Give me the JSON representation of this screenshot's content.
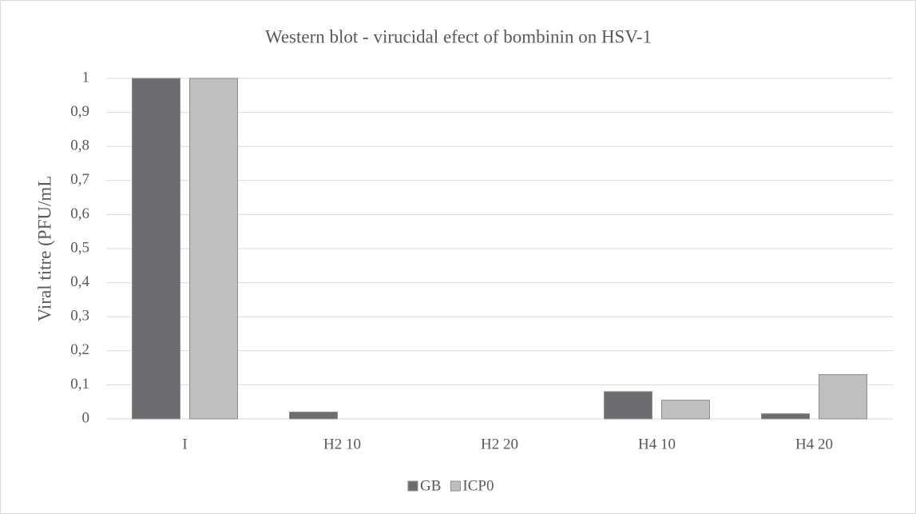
{
  "chart_data": {
    "type": "bar",
    "title": "Western blot - virucidal efect of bombinin on HSV-1",
    "y_label": "Viral titre (PFU/mL",
    "categories": [
      "I",
      "H2 10",
      "H2 20",
      "H4 10",
      "H4 20"
    ],
    "series": [
      {
        "name": "GB",
        "color": "#6e6c70",
        "values": [
          1,
          0.02,
          0,
          0.08,
          0.015
        ]
      },
      {
        "name": "ICP0",
        "color": "#bfbfbf",
        "values": [
          1,
          0,
          0,
          0.055,
          0.13
        ]
      }
    ],
    "ylim": [
      0,
      1
    ],
    "yticks": [
      0,
      {
        "value": 0.1,
        "label": "0,1"
      },
      {
        "value": 0.2,
        "label": "0,2"
      },
      {
        "value": 0.3,
        "label": "0,3"
      },
      {
        "value": 0.4,
        "label": "0,4"
      },
      {
        "value": 0.5,
        "label": "0,5"
      },
      {
        "value": 0.6,
        "label": "0,6"
      },
      {
        "value": 0.7,
        "label": "0,7"
      },
      {
        "value": 0.8,
        "label": "0,8"
      },
      {
        "value": 0.9,
        "label": "0,9"
      },
      1
    ],
    "grid": true,
    "legend": "bottom"
  }
}
